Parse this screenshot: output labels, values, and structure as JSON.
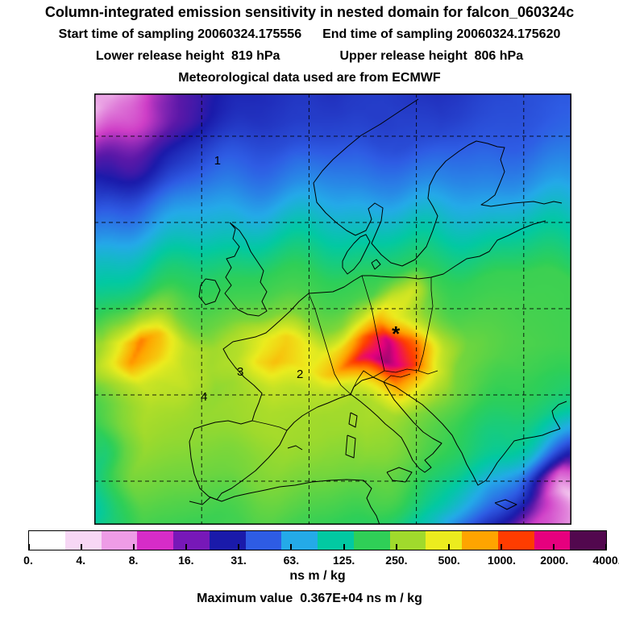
{
  "header": {
    "title": "Column-integrated emission sensitivity in nested domain for falcon_060324c",
    "start_time": "Start time of sampling 20060324.175556",
    "end_time": "End time of sampling 20060324.175620",
    "lower_release": "Lower release height  819 hPa",
    "upper_release": "Upper release height  806 hPa",
    "met_line": "Meteorological data used are from ECMWF"
  },
  "footer": {
    "unit": "ns m / kg",
    "max_line": "Maximum value  0.367E+04 ns m / kg"
  },
  "chart_data": {
    "type": "heatmap",
    "title": "Column-integrated emission sensitivity in nested domain for falcon_060324c",
    "units": "ns m / kg",
    "max_value": "0.367E+04",
    "colorbar": {
      "unit": "ns m / kg",
      "ticks": [
        "0.",
        "4.",
        "8.",
        "16.",
        "31.",
        "63.",
        "125.",
        "250.",
        "500.",
        "1000.",
        "2000.",
        "4000."
      ],
      "segment_colors": [
        "#ffffff",
        "#f7d7f5",
        "#ee9ce6",
        "#d62cc8",
        "#7718b8",
        "#1a1aaa",
        "#2e5ce4",
        "#24aae8",
        "#02c9a2",
        "#2fcf57",
        "#a0da2c",
        "#ecec1e",
        "#ffa400",
        "#ff3c00",
        "#e6007e",
        "#52084e"
      ]
    },
    "colormap_stops": [
      {
        "v": 3,
        "c": "#ffffff"
      },
      {
        "v": 6,
        "c": "#f2c4ee"
      },
      {
        "v": 11,
        "c": "#cf3ec7"
      },
      {
        "v": 16,
        "c": "#5a18a8"
      },
      {
        "v": 22,
        "c": "#1a1aaa"
      },
      {
        "v": 45,
        "c": "#2e5ce4"
      },
      {
        "v": 90,
        "c": "#24aae8"
      },
      {
        "v": 170,
        "c": "#02c9a2"
      },
      {
        "v": 300,
        "c": "#2fcf57"
      },
      {
        "v": 550,
        "c": "#a0da2c"
      },
      {
        "v": 1000,
        "c": "#ecec1e"
      },
      {
        "v": 1700,
        "c": "#ffa400"
      },
      {
        "v": 2500,
        "c": "#ff3c00"
      },
      {
        "v": 3200,
        "c": "#e6007e"
      },
      {
        "v": 3800,
        "c": "#8a0a6e"
      },
      {
        "v": 5000,
        "c": "#4a084a"
      }
    ],
    "field_grid": {
      "cols": 22,
      "rows": 20,
      "values": [
        [
          8,
          6,
          8,
          12,
          16,
          20,
          24,
          26,
          28,
          30,
          30,
          28,
          30,
          32,
          30,
          28,
          30,
          33,
          36,
          38,
          40,
          42
        ],
        [
          6,
          8,
          11,
          15,
          19,
          23,
          27,
          29,
          31,
          32,
          32,
          31,
          32,
          34,
          33,
          31,
          33,
          36,
          39,
          41,
          43,
          46
        ],
        [
          9,
          12,
          15,
          19,
          25,
          29,
          33,
          36,
          38,
          38,
          37,
          36,
          37,
          39,
          37,
          36,
          39,
          41,
          43,
          46,
          49,
          52
        ],
        [
          14,
          17,
          21,
          27,
          33,
          39,
          44,
          47,
          50,
          52,
          50,
          48,
          50,
          52,
          50,
          49,
          51,
          53,
          56,
          59,
          61,
          64
        ],
        [
          22,
          27,
          33,
          41,
          49,
          56,
          61,
          64,
          67,
          69,
          67,
          65,
          67,
          69,
          67,
          65,
          68,
          70,
          73,
          76,
          79,
          82
        ],
        [
          36,
          44,
          52,
          62,
          72,
          82,
          88,
          92,
          97,
          99,
          97,
          94,
          97,
          99,
          97,
          94,
          97,
          100,
          104,
          108,
          111,
          115
        ],
        [
          60,
          72,
          84,
          96,
          110,
          124,
          134,
          140,
          146,
          147,
          145,
          142,
          145,
          147,
          145,
          142,
          147,
          152,
          157,
          162,
          165,
          168
        ],
        [
          95,
          112,
          130,
          150,
          170,
          188,
          200,
          206,
          212,
          213,
          211,
          208,
          211,
          213,
          211,
          208,
          213,
          218,
          224,
          229,
          232,
          235
        ],
        [
          150,
          175,
          200,
          230,
          255,
          275,
          288,
          295,
          300,
          301,
          299,
          296,
          299,
          302,
          300,
          297,
          302,
          308,
          314,
          319,
          322,
          325
        ],
        [
          230,
          270,
          310,
          330,
          330,
          330,
          335,
          340,
          345,
          345,
          342,
          340,
          360,
          700,
          800,
          380,
          330,
          330,
          330,
          330,
          328,
          325
        ],
        [
          350,
          450,
          600,
          520,
          420,
          400,
          420,
          450,
          460,
          450,
          440,
          480,
          700,
          1400,
          900,
          500,
          380,
          360,
          350,
          340,
          335,
          330
        ],
        [
          550,
          1000,
          2000,
          1400,
          700,
          550,
          650,
          1000,
          1200,
          1000,
          900,
          1200,
          2200,
          3400,
          2000,
          700,
          420,
          380,
          360,
          350,
          340,
          330
        ],
        [
          500,
          900,
          1800,
          1300,
          700,
          560,
          650,
          1100,
          1400,
          1150,
          1000,
          1500,
          3000,
          3670,
          2600,
          900,
          450,
          390,
          360,
          340,
          320,
          300
        ],
        [
          380,
          550,
          800,
          700,
          550,
          500,
          540,
          650,
          750,
          680,
          640,
          750,
          1200,
          1500,
          900,
          550,
          420,
          370,
          330,
          300,
          270,
          240
        ],
        [
          330,
          480,
          620,
          580,
          540,
          520,
          540,
          570,
          600,
          580,
          550,
          570,
          620,
          580,
          500,
          430,
          370,
          320,
          280,
          240,
          200,
          160
        ],
        [
          300,
          450,
          560,
          530,
          510,
          490,
          510,
          540,
          570,
          550,
          530,
          540,
          570,
          520,
          450,
          380,
          320,
          270,
          220,
          170,
          120,
          80
        ],
        [
          260,
          400,
          500,
          480,
          460,
          450,
          460,
          490,
          520,
          500,
          480,
          490,
          510,
          460,
          390,
          320,
          260,
          200,
          150,
          100,
          50,
          25
        ],
        [
          220,
          340,
          440,
          430,
          420,
          410,
          430,
          450,
          460,
          450,
          430,
          430,
          440,
          390,
          330,
          260,
          200,
          140,
          90,
          50,
          20,
          10
        ],
        [
          180,
          280,
          370,
          370,
          360,
          360,
          370,
          390,
          400,
          390,
          370,
          360,
          350,
          300,
          240,
          180,
          120,
          80,
          45,
          20,
          12,
          6
        ],
        [
          150,
          240,
          320,
          330,
          320,
          320,
          330,
          340,
          350,
          340,
          320,
          300,
          280,
          230,
          180,
          130,
          80,
          45,
          25,
          12,
          10,
          7
        ]
      ]
    },
    "annotations": [
      {
        "text": "1",
        "x": 0.258,
        "y": 0.155
      },
      {
        "text": "3",
        "x": 0.306,
        "y": 0.645
      },
      {
        "text": "2",
        "x": 0.431,
        "y": 0.65
      },
      {
        "text": "4",
        "x": 0.23,
        "y": 0.703
      }
    ],
    "marker": {
      "symbol": "*",
      "x": 0.632,
      "y": 0.557
    },
    "gridlines": {
      "x": [
        0.225,
        0.45,
        0.675,
        0.9
      ],
      "y": [
        0.099,
        0.299,
        0.499,
        0.699,
        0.899
      ]
    },
    "basemap": {
      "coastlines": [
        "M402,7 379,22 355,38 331,52 314,66 296,82 283,96 272,111 276,135 287,148 300,160 313,170 324,176 337,170 344,156 340,143 348,136 358,142 356,158 350,172 344,186 356,200 368,210 382,214 398,206 412,190 420,170 426,152 420,140 414,130 416,114 424,98 436,84 452,72 464,64 474,59 488,62 500,66 509,67 504,82 509,97 503,112 497,126 488,133 480,138 492,140 506,138 520,136 532,135 545,134 558,137 570,134 580,136",
        "M560,158 545,162 530,168 514,176 500,182 490,196 478,202 462,205 448,214 433,224 418,228 402,230 386,228 370,228 355,227 344,226 332,226",
        "M308,208 314,196 322,186 330,178 337,175 342,184 336,196 330,208 322,218 314,224 308,216 308,208",
        "M344,210 350,206 355,212 348,218 344,210",
        "M332,226 322,232 310,240 296,246 281,247 266,248 254,258 243,270 230,282 221,290 213,297 200,302 186,305 172,308 160,317 166,328 175,340 186,352 198,362 208,372 204,384 199,396 196,406 182,410 166,406 150,408 136,412 124,416 118,432 120,452 124,472 131,490 142,500 152,504 158,496 170,490 184,480 200,468 216,452 230,436 239,418 248,408 258,400 268,394 277,389 290,384 304,378 318,373",
        "M318,373 330,382 342,392 352,401 361,410 371,418 381,427 388,440 395,455 403,465 410,470 418,464 410,455 420,447 431,434 420,428 408,420 396,408 384,394 372,380 359,358 346,352 332,356 322,364 318,373",
        "M359,358 374,364 389,374 407,386 420,398 432,410 444,424 450,436 456,446 462,460 470,474 476,486 486,480 494,468 500,458 508,448 521,431 534,428 546,426 556,424 566,420 578,416",
        "M363,470 378,464 394,470 386,482 370,480 363,470",
        "M318,396 326,400 324,414 316,410 318,396",
        "M314,424 324,428 322,452 312,448 314,424",
        "M497,508 510,504 524,510 512,516 497,508",
        "M168,160 175,168 172,180 180,190 174,202 164,205 170,216 163,228 170,238 162,248 170,258 178,268 190,274 204,276 214,270 208,258 214,246 206,234 210,220 202,208 194,196 188,182 180,170 168,160",
        "M138,230 150,232 156,244 150,258 138,262 130,252 132,238 138,230",
        "M118,506 134,510 144,501 158,506 174,500 192,496 212,492 230,488 249,486 270,482 292,480 313,479 334,480 344,490 338,502 343,513 350,524 354,535",
        "M578,416 570,402 568,394 576,386 586,382",
        "M240,440 250,437 258,442"
      ],
      "borders": [
        "M196,406 214,410 230,414 239,418",
        "M266,248 274,268 280,288 286,308 292,328 298,348 306,362 318,373",
        "M318,373 326,356 334,344 346,352",
        "M346,352 360,344 374,346 388,342 402,344 414,348 426,344",
        "M332,226 338,246 344,266 348,286 352,306 356,326 360,344",
        "M402,344 408,324 412,304 416,284 420,264 418,244 418,228",
        "M359,358 368,350 380,352 392,348"
      ]
    }
  }
}
